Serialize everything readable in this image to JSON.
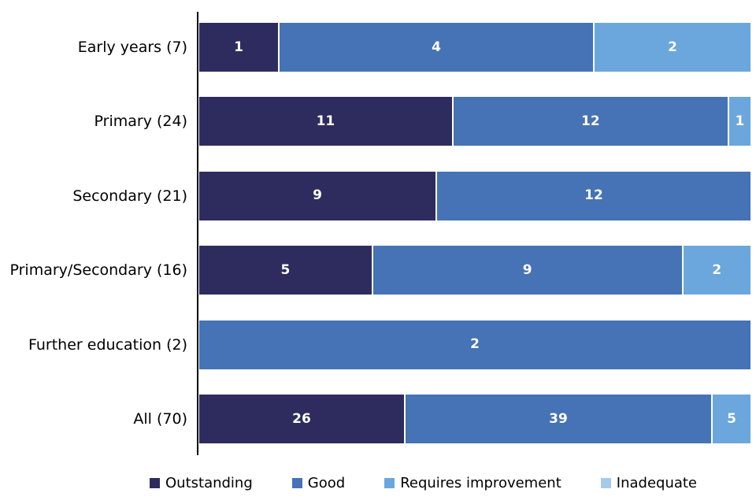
{
  "chart_data": {
    "type": "bar",
    "orientation": "horizontal",
    "stacked": true,
    "percent_of_row_total": true,
    "title": "",
    "xlabel": "",
    "ylabel": "",
    "grid": false,
    "legend_position": "bottom",
    "categories": [
      "Early years (7)",
      "Primary (24)",
      "Secondary (21)",
      "Primary/Secondary (16)",
      "Further education (2)",
      "All (70)"
    ],
    "row_totals": [
      7,
      24,
      21,
      16,
      2,
      70
    ],
    "series": [
      {
        "name": "Outstanding",
        "color": "#2e2c5f",
        "values": [
          1,
          11,
          9,
          5,
          0,
          26
        ]
      },
      {
        "name": "Good",
        "color": "#4573b5",
        "values": [
          4,
          12,
          12,
          9,
          2,
          39
        ]
      },
      {
        "name": "Requires improvement",
        "color": "#6ba7dc",
        "values": [
          2,
          1,
          0,
          2,
          0,
          5
        ]
      },
      {
        "name": "Inadequate",
        "color": "#a6cbea",
        "values": [
          0,
          0,
          0,
          0,
          0,
          0
        ]
      }
    ],
    "value_label_style": "white bold number centered in each non-zero segment"
  },
  "legend": {
    "items": [
      {
        "label": "Outstanding",
        "color": "#2e2c5f"
      },
      {
        "label": "Good",
        "color": "#4573b5"
      },
      {
        "label": "Requires improvement",
        "color": "#6ba7dc"
      },
      {
        "label": "Inadequate",
        "color": "#a6cbea"
      }
    ]
  }
}
